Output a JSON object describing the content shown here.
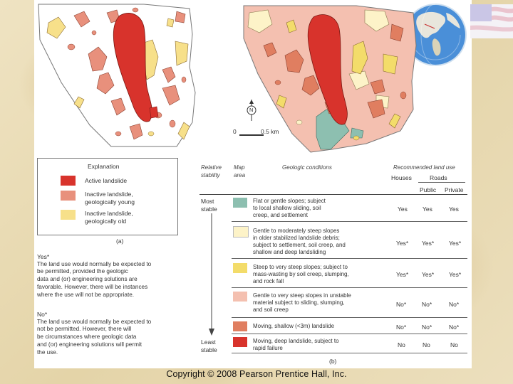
{
  "colors": {
    "active": "#d8332c",
    "inactive_young": "#e8907c",
    "inactive_old": "#f7e08a",
    "flat": "#8dbfb0",
    "gentle_moderate": "#fdf3c8",
    "steep": "#f3dc6a",
    "unstable": "#f4c0b0",
    "shallow": "#e07e60",
    "deep": "#d8332c"
  },
  "map_a": {
    "part_label": "(a)"
  },
  "map_b": {
    "part_label": "(b)",
    "north": "N",
    "scale_start": "0",
    "scale_end": "0.5 km"
  },
  "explanation": {
    "title": "Explanation",
    "items": [
      {
        "label_l1": "Active landslide",
        "label_l2": "",
        "color": "#d8332c"
      },
      {
        "label_l1": "Inactive landslide,",
        "label_l2": "geologically young",
        "color": "#e8907c"
      },
      {
        "label_l1": "Inactive landslide,",
        "label_l2": "geologically old",
        "color": "#f7e08a"
      }
    ]
  },
  "notes": {
    "yes_title": "Yes*",
    "yes_lines": [
      "The land use would normally be expected to",
      "be permitted, provided the geologic",
      "data and (or) engineering solutions are",
      "favorable. However, there will be instances",
      "where the use will not be appropriate."
    ],
    "no_title": "No*",
    "no_lines": [
      "The land use would normally be expected to",
      "not be permitted. However, there will",
      "be circumstances where geologic data",
      "and (or) engineering solutions will permit",
      "the use."
    ]
  },
  "table": {
    "h_relative": "Relative",
    "h_stability": "stability",
    "h_map": "Map",
    "h_area": "area",
    "h_geologic": "Geologic conditions",
    "h_recommended": "Recommended land use",
    "h_houses": "Houses",
    "h_roads": "Roads",
    "h_public": "Public",
    "h_private": "Private",
    "most": "Most",
    "most2": "stable",
    "least": "Least",
    "least2": "stable",
    "rows": [
      {
        "color": "#8dbfb0",
        "lines": [
          "Flat or gentle slopes; subject",
          "to local shallow sliding, soil",
          "creep, and settlement"
        ],
        "houses": "Yes",
        "public": "Yes",
        "private": "Yes"
      },
      {
        "color": "#fdf3c8",
        "lines": [
          "Gentle to moderately steep slopes",
          "in older stabilized landslide debris;",
          "subject to settlement, soil creep, and",
          "shallow and deep landsliding"
        ],
        "houses": "Yes*",
        "public": "Yes*",
        "private": "Yes*"
      },
      {
        "color": "#f3dc6a",
        "lines": [
          "Steep to very steep slopes; subject to",
          "mass-wasting by soil creep, slumping,",
          "and rock fall"
        ],
        "houses": "Yes*",
        "public": "Yes*",
        "private": "Yes*"
      },
      {
        "color": "#f4c0b0",
        "lines": [
          "Gentle to very steep slopes in unstable",
          "material subject to sliding, slumping,",
          "and soil creep"
        ],
        "houses": "No*",
        "public": "No*",
        "private": "No*"
      },
      {
        "color": "#e07e60",
        "lines": [
          "Moving, shallow (<3m) landslide"
        ],
        "houses": "No*",
        "public": "No*",
        "private": "No*"
      },
      {
        "color": "#d8332c",
        "lines": [
          "Moving, deep landslide, subject to",
          "rapid failure"
        ],
        "houses": "No",
        "public": "No",
        "private": "No"
      }
    ]
  },
  "copyright": "Copyright © 2008 Pearson Prentice Hall, Inc."
}
